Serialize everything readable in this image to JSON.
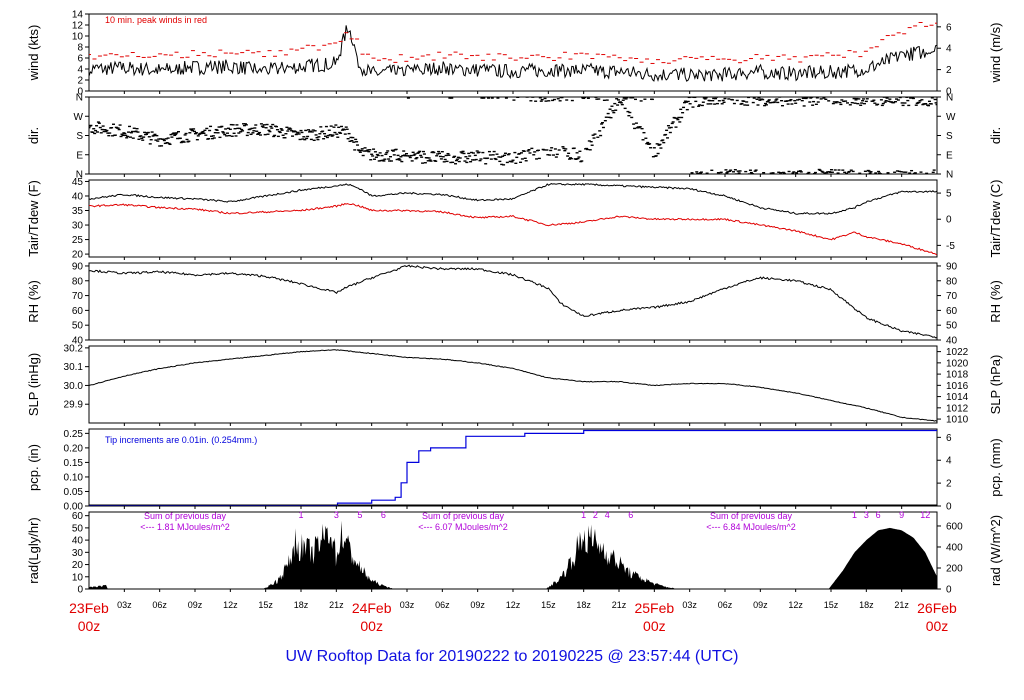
{
  "title": "UW Rooftop Data for 20190222  to  20190225 @ 23:57:44  (UTC)",
  "colors": {
    "axis": "#000000",
    "red": "#e00000",
    "blue": "#0000dd",
    "purple": "#b000d8",
    "title": "#1010e0"
  },
  "chart_data": [
    {
      "name_key": "wind",
      "type": "line",
      "ylabel_left": "wind (kts)",
      "ylabel_right": "wind (m/s)",
      "left_ticks": [
        "0",
        "2",
        "4",
        "6",
        "8",
        "10",
        "12",
        "14"
      ],
      "right_ticks": [
        "0",
        "2",
        "4",
        "6"
      ],
      "ylim": [
        0,
        14
      ],
      "right_ylim": [
        0,
        7.2
      ],
      "annotation": "10 min. peak winds in red",
      "x_hours": [
        0,
        3,
        6,
        9,
        12,
        15,
        18,
        21,
        22,
        23,
        24,
        27,
        30,
        33,
        36,
        39,
        42,
        45,
        48,
        51,
        54,
        57,
        60,
        63,
        66,
        69,
        72
      ],
      "series": [
        {
          "values": [
            4,
            4.2,
            3.8,
            4.3,
            4.5,
            3.8,
            4.5,
            5,
            12,
            4.5,
            3.2,
            3.6,
            4.2,
            3.8,
            3.6,
            3.8,
            3.8,
            3.5,
            3,
            3,
            3,
            3.5,
            3.2,
            3.4,
            4,
            6.5,
            7.5
          ]
        },
        {
          "values": [
            6,
            6.5,
            6.2,
            6.8,
            6.8,
            6.5,
            7.5,
            8.5,
            11,
            8,
            5.5,
            6,
            6.5,
            6.2,
            6,
            6.3,
            6.3,
            6,
            5.5,
            5.5,
            5.6,
            6,
            5.8,
            6.5,
            7,
            11,
            13
          ]
        }
      ]
    },
    {
      "name_key": "direction",
      "type": "scatter",
      "ylabel_left": "dir.",
      "ylabel_right": "dir.",
      "left_ticks": [
        "N",
        "E",
        "S",
        "W",
        "N"
      ],
      "right_ticks": [
        "N",
        "E",
        "S",
        "W",
        "N"
      ],
      "ylim": [
        0,
        360
      ],
      "x_hours": [
        0,
        3,
        6,
        9,
        12,
        15,
        18,
        21,
        22,
        23,
        24,
        27,
        30,
        33,
        36,
        39,
        42,
        45,
        48,
        51,
        54,
        57,
        60,
        63,
        66,
        69,
        72
      ],
      "values": [
        220,
        200,
        160,
        185,
        205,
        210,
        180,
        200,
        195,
        100,
        90,
        85,
        75,
        80,
        70,
        110,
        85,
        340,
        100,
        340,
        355,
        350,
        345,
        355,
        350,
        345,
        350
      ]
    },
    {
      "name_key": "temperature",
      "type": "line",
      "ylabel_left": "Tair/Tdew (F)",
      "ylabel_right": "Tair/Tdew (C)",
      "left_ticks": [
        "20",
        "25",
        "30",
        "35",
        "40",
        "45"
      ],
      "right_ticks": [
        "-5",
        "0",
        "5"
      ],
      "ylim": [
        19,
        45.5
      ],
      "x_hours": [
        0,
        3,
        6,
        9,
        12,
        15,
        18,
        21,
        22,
        23,
        24,
        27,
        30,
        33,
        36,
        39,
        42,
        45,
        48,
        51,
        54,
        57,
        60,
        63,
        65,
        66,
        69,
        72
      ],
      "series": [
        {
          "values": [
            39,
            40.5,
            39.5,
            39,
            38,
            40,
            42,
            43.5,
            44,
            42.5,
            40,
            41,
            40.5,
            38.5,
            39,
            44,
            44,
            43.5,
            43,
            42.5,
            40,
            36,
            34,
            34,
            36,
            38,
            41.5,
            41.5
          ]
        },
        {
          "values": [
            36.5,
            37,
            36,
            35.5,
            34,
            34.5,
            35,
            36.5,
            37.5,
            36.5,
            35,
            35,
            34.5,
            32.5,
            33,
            30,
            31,
            33,
            32,
            32,
            32,
            30,
            28,
            25,
            27.5,
            26,
            23.5,
            20
          ]
        }
      ]
    },
    {
      "name_key": "humidity",
      "type": "line",
      "ylabel_left": "RH (%)",
      "ylabel_right": "RH (%)",
      "left_ticks": [
        "40",
        "50",
        "60",
        "70",
        "80",
        "90"
      ],
      "right_ticks": [
        "40",
        "50",
        "60",
        "70",
        "80",
        "90"
      ],
      "ylim": [
        40,
        92
      ],
      "x_hours": [
        0,
        3,
        6,
        9,
        12,
        15,
        18,
        20,
        21,
        22,
        24,
        27,
        30,
        33,
        36,
        39,
        40,
        42,
        45,
        48,
        51,
        54,
        56,
        57,
        60,
        63,
        66,
        69,
        72
      ],
      "series": [
        {
          "values": [
            87,
            85,
            86,
            84,
            85,
            83,
            78,
            74,
            72,
            76,
            82,
            90,
            88,
            88,
            84,
            75,
            65,
            56,
            60,
            62,
            66,
            75,
            80,
            82,
            80,
            74,
            55,
            46,
            42
          ]
        }
      ]
    },
    {
      "name_key": "pressure",
      "type": "line",
      "ylabel_left": "SLP (inHg)",
      "ylabel_right": "SLP (hPa)",
      "left_ticks": [
        "29.9",
        "30.0",
        "30.1",
        "30.2"
      ],
      "right_ticks": [
        "1010",
        "1012",
        "1014",
        "1016",
        "1018",
        "1020",
        "1022"
      ],
      "ylim": [
        29.8,
        30.21
      ],
      "right_ylim": [
        1009.3,
        1023
      ],
      "x_hours": [
        0,
        3,
        6,
        9,
        12,
        15,
        18,
        21,
        24,
        27,
        30,
        33,
        36,
        39,
        42,
        45,
        48,
        51,
        54,
        57,
        60,
        63,
        66,
        69,
        72
      ],
      "series": [
        {
          "values": [
            30.0,
            30.05,
            30.09,
            30.12,
            30.14,
            30.16,
            30.18,
            30.19,
            30.17,
            30.15,
            30.14,
            30.12,
            30.09,
            30.04,
            30.02,
            30.02,
            30.0,
            30.01,
            30.01,
            29.99,
            29.96,
            29.92,
            29.88,
            29.83,
            29.81
          ]
        }
      ]
    },
    {
      "name_key": "precipitation",
      "type": "line",
      "ylabel_left": "pcp. (in)",
      "ylabel_right": "pcp. (mm)",
      "left_ticks": [
        "0.00",
        "0.05",
        "0.10",
        "0.15",
        "0.20",
        "0.25"
      ],
      "right_ticks": [
        "0",
        "2",
        "4",
        "6"
      ],
      "ylim": [
        0,
        0.265
      ],
      "right_ylim": [
        0,
        6.73
      ],
      "annotation": "Tip increments are 0.01in. (0.254mm.)",
      "x_hours": [
        0,
        21,
        21.1,
        24,
        26,
        26.5,
        27,
        28,
        29,
        32,
        37,
        42,
        72
      ],
      "series": [
        {
          "values": [
            0,
            0,
            0.01,
            0.02,
            0.03,
            0.08,
            0.15,
            0.19,
            0.2,
            0.24,
            0.25,
            0.26,
            0.26
          ]
        }
      ]
    },
    {
      "name_key": "radiation",
      "type": "area",
      "ylabel_left": "rad(Lgly/hr)",
      "ylabel_right": "rad (W/m^2)",
      "left_ticks": [
        "0",
        "10",
        "20",
        "30",
        "40",
        "50",
        "60"
      ],
      "right_ticks": [
        "0",
        "200",
        "400",
        "600"
      ],
      "ylim": [
        0,
        63
      ],
      "right_ylim": [
        0,
        733
      ],
      "x_hours": [
        0,
        1.5,
        1.6,
        14.8,
        16,
        17,
        17.5,
        18,
        19,
        20,
        20.5,
        21,
        21.5,
        22,
        23,
        24,
        25,
        26,
        38.8,
        40,
        41,
        41.5,
        42,
        43,
        44,
        45,
        46,
        47,
        48,
        49,
        50,
        62.8,
        64,
        65,
        66,
        67,
        68,
        69,
        70,
        71,
        72
      ],
      "values": [
        2,
        3,
        0,
        0,
        8,
        25,
        45,
        40,
        35,
        50,
        60,
        30,
        55,
        40,
        20,
        8,
        3,
        0,
        0,
        10,
        28,
        40,
        50,
        45,
        35,
        25,
        15,
        10,
        5,
        2,
        0,
        0,
        15,
        30,
        40,
        48,
        50,
        48,
        42,
        30,
        10
      ],
      "annotations": [
        {
          "line1": "Sum of previous day",
          "line2": "<--- 1.81 MJoules/m^2"
        },
        {
          "line1": "Sum of previous day",
          "line2": "<--- 6.07 MJoules/m^2"
        },
        {
          "line1": "Sum of previous day",
          "line2": "<--- 6.84 MJoules/m^2"
        }
      ],
      "marks": [
        {
          "x": 18,
          "t": "1"
        },
        {
          "x": 21,
          "t": "3"
        },
        {
          "x": 23,
          "t": "5"
        },
        {
          "x": 25,
          "t": "6"
        },
        {
          "x": 42,
          "t": "1"
        },
        {
          "x": 43,
          "t": "2"
        },
        {
          "x": 44,
          "t": "4"
        },
        {
          "x": 46,
          "t": "6"
        },
        {
          "x": 65,
          "t": "1"
        },
        {
          "x": 66,
          "t": "3"
        },
        {
          "x": 67,
          "t": "6"
        },
        {
          "x": 69,
          "t": "9"
        },
        {
          "x": 71,
          "t": "12"
        }
      ]
    }
  ],
  "x_axis": {
    "minor": [
      {
        "h": 3,
        "t": "03z"
      },
      {
        "h": 6,
        "t": "06z"
      },
      {
        "h": 9,
        "t": "09z"
      },
      {
        "h": 12,
        "t": "12z"
      },
      {
        "h": 15,
        "t": "15z"
      },
      {
        "h": 18,
        "t": "18z"
      },
      {
        "h": 21,
        "t": "21z"
      },
      {
        "h": 27,
        "t": "03z"
      },
      {
        "h": 30,
        "t": "06z"
      },
      {
        "h": 33,
        "t": "09z"
      },
      {
        "h": 36,
        "t": "12z"
      },
      {
        "h": 39,
        "t": "15z"
      },
      {
        "h": 42,
        "t": "18z"
      },
      {
        "h": 45,
        "t": "21z"
      },
      {
        "h": 51,
        "t": "03z"
      },
      {
        "h": 54,
        "t": "06z"
      },
      {
        "h": 57,
        "t": "09z"
      },
      {
        "h": 60,
        "t": "12z"
      },
      {
        "h": 63,
        "t": "15z"
      },
      {
        "h": 66,
        "t": "18z"
      },
      {
        "h": 69,
        "t": "21z"
      }
    ],
    "major": [
      {
        "h": 0,
        "date": "23Feb",
        "hour": "00z"
      },
      {
        "h": 24,
        "date": "24Feb",
        "hour": "00z"
      },
      {
        "h": 48,
        "date": "25Feb",
        "hour": "00z"
      },
      {
        "h": 72,
        "date": "26Feb",
        "hour": "00z"
      }
    ]
  }
}
